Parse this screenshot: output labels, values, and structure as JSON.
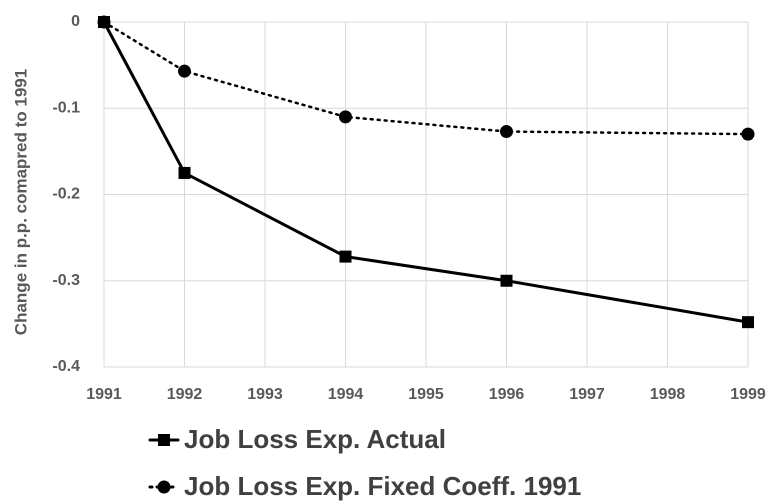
{
  "chart_data": {
    "type": "line",
    "y_label": "Change in p.p. comapred to 1991",
    "x": [
      1991,
      1992,
      1994,
      1996,
      1999
    ],
    "series": [
      {
        "name": "Job Loss Exp. Actual",
        "color": "#000000",
        "line_style": "solid",
        "marker": "square",
        "values": [
          0,
          -0.175,
          -0.272,
          -0.3,
          -0.348
        ]
      },
      {
        "name": "Job Loss Exp. Fixed Coeff. 1991",
        "color": "#000000",
        "line_style": "dotted",
        "marker": "circle",
        "values": [
          0,
          -0.057,
          -0.11,
          -0.127,
          -0.13
        ]
      }
    ],
    "xlim": [
      1991,
      1999
    ],
    "xticks": [
      1991,
      1992,
      1993,
      1994,
      1995,
      1996,
      1997,
      1998,
      1999
    ],
    "ylim": [
      -0.4,
      0
    ],
    "yticks": [
      0,
      -0.1,
      -0.2,
      -0.3,
      -0.4
    ],
    "grid": true,
    "legend": "bottom"
  }
}
